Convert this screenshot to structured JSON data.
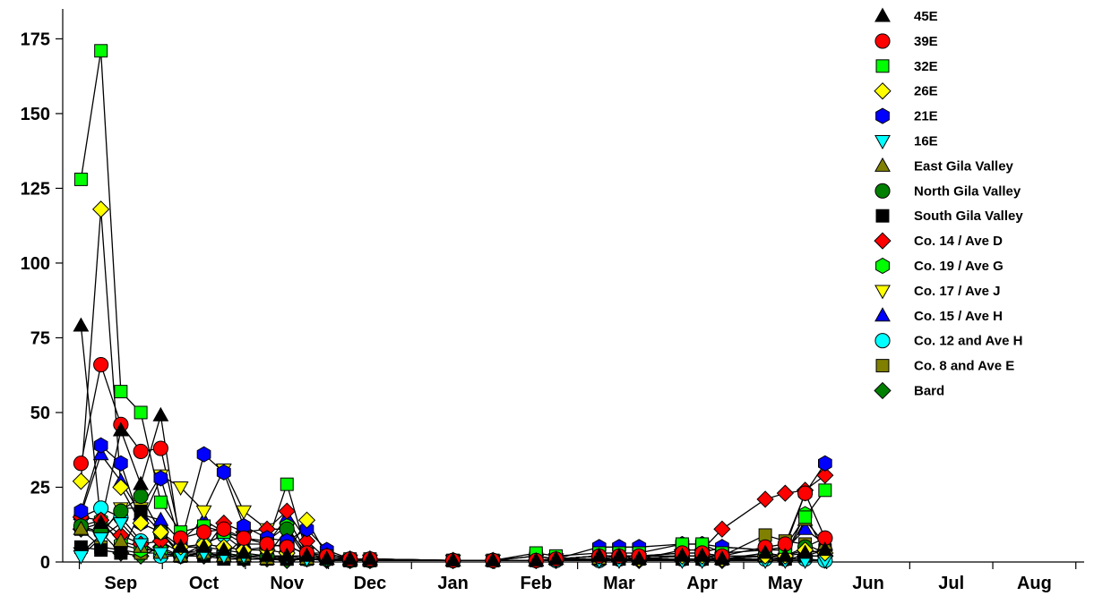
{
  "chart_data": {
    "type": "line",
    "title": "",
    "xlabel": "",
    "ylabel": "",
    "ylim": [
      0,
      185
    ],
    "xlim": [
      -0.7,
      11.6
    ],
    "yticks": [
      0,
      25,
      50,
      75,
      100,
      125,
      150,
      175
    ],
    "month_ticks": [
      "Sep",
      "Oct",
      "Nov",
      "Dec",
      "Jan",
      "Feb",
      "Mar",
      "Apr",
      "May",
      "Jun",
      "Jul",
      "Aug"
    ],
    "grid": false,
    "legend_position": "top-right",
    "x": [
      -0.48,
      -0.24,
      0.0,
      0.24,
      0.48,
      0.72,
      1.0,
      1.24,
      1.48,
      1.76,
      2.0,
      2.24,
      2.48,
      2.76,
      3.0,
      4.0,
      4.48,
      5.0,
      5.24,
      5.76,
      6.0,
      6.24,
      6.76,
      7.0,
      7.24,
      7.76,
      8.0,
      8.24,
      8.48
    ],
    "series": [
      {
        "name": "45E",
        "marker": "triangle-up",
        "color": "#000000",
        "values": [
          79,
          13,
          44,
          26,
          49,
          5,
          5,
          4,
          3,
          2,
          2,
          2,
          1,
          1,
          1,
          0.5,
          0.5,
          0.5,
          1,
          2,
          2,
          1,
          2,
          2,
          1,
          3,
          2,
          3,
          4
        ]
      },
      {
        "name": "39E",
        "marker": "circle",
        "color": "#ff0000",
        "values": [
          33,
          66,
          46,
          37,
          38,
          8,
          10,
          11,
          8,
          6,
          5,
          3,
          2,
          1,
          1,
          0.5,
          0.5,
          0.5,
          1,
          2,
          2,
          2,
          3,
          3,
          2,
          5,
          6,
          23,
          8
        ]
      },
      {
        "name": "32E",
        "marker": "square",
        "color": "#00ff00",
        "values": [
          128,
          171,
          57,
          50,
          20,
          10,
          12,
          10,
          8,
          6,
          26,
          3,
          2,
          1,
          1,
          0.5,
          0.5,
          3,
          2,
          3,
          3,
          3,
          6,
          6,
          3,
          4,
          5,
          15,
          24
        ]
      },
      {
        "name": "26E",
        "marker": "diamond",
        "color": "#ffff00",
        "values": [
          27,
          118,
          25,
          13,
          10,
          5,
          6,
          5,
          4,
          4,
          3,
          14,
          2,
          1,
          1,
          0.5,
          0.5,
          0.5,
          1,
          2,
          2,
          1,
          2,
          2,
          1,
          2,
          2,
          4,
          3
        ]
      },
      {
        "name": "21E",
        "marker": "hexagon",
        "color": "#0000ff",
        "values": [
          17,
          39,
          33,
          13,
          28,
          6,
          36,
          30,
          12,
          8,
          7,
          11,
          4,
          1,
          1,
          0.5,
          0.5,
          0.5,
          1,
          5,
          5,
          5,
          6,
          6,
          5,
          4,
          5,
          23,
          33
        ]
      },
      {
        "name": "16E",
        "marker": "triangle-down",
        "color": "#00ffff",
        "values": [
          2,
          8,
          13,
          6,
          3,
          2,
          3,
          2,
          2,
          2,
          2,
          1,
          1,
          0.5,
          0.5,
          0.5,
          0.5,
          0.5,
          0.5,
          0.5,
          0.5,
          0.5,
          0.5,
          0.5,
          0.5,
          0.5,
          0.5,
          0.5,
          0.5
        ]
      },
      {
        "name": "East Gila Valley",
        "marker": "triangle-up",
        "color": "#808000",
        "values": [
          11,
          13,
          7,
          5,
          3,
          2,
          3,
          2,
          2,
          1,
          2,
          1,
          1,
          0.5,
          0.5,
          0.5,
          0.5,
          0.5,
          1,
          1,
          2,
          1,
          2,
          2,
          1,
          2,
          2,
          14,
          6
        ]
      },
      {
        "name": "North Gila Valley",
        "marker": "circle",
        "color": "#008000",
        "values": [
          12,
          10,
          17,
          22,
          10,
          3,
          3,
          3,
          2,
          2,
          11,
          1,
          1,
          0.5,
          0.5,
          0.5,
          0.5,
          0.5,
          1,
          1,
          2,
          1,
          2,
          2,
          1,
          2,
          2,
          5,
          8
        ]
      },
      {
        "name": "South Gila Valley",
        "marker": "square",
        "color": "#000000",
        "values": [
          5,
          4,
          3,
          17,
          10,
          2,
          2,
          1,
          1,
          1,
          1,
          1,
          1,
          0.5,
          0.5,
          0.5,
          0.5,
          0.5,
          1,
          1,
          1,
          1,
          1,
          1,
          1,
          2,
          1,
          2,
          4
        ]
      },
      {
        "name": "Co. 14 / Ave D",
        "marker": "diamond",
        "color": "#ff0000",
        "values": [
          15,
          14,
          9,
          6,
          7,
          3,
          4,
          13,
          10,
          11,
          17,
          7,
          1,
          0.5,
          0.5,
          0.5,
          0.5,
          0.5,
          1,
          2,
          2,
          1,
          4,
          4,
          11,
          21,
          23,
          24,
          29
        ]
      },
      {
        "name": "Co. 19 / Ave G",
        "marker": "hexagon",
        "color": "#00ff00",
        "values": [
          12,
          14,
          6,
          4,
          4,
          2,
          3,
          2,
          8,
          7,
          12,
          2,
          1,
          0.5,
          0.5,
          0.5,
          0.5,
          2,
          1,
          2,
          2,
          1,
          2,
          2,
          2,
          2,
          2,
          16,
          3
        ]
      },
      {
        "name": "Co. 17 / Ave J",
        "marker": "triangle-down",
        "color": "#ffff00",
        "values": [
          3,
          9,
          18,
          18,
          29,
          25,
          17,
          31,
          17,
          11,
          11,
          3,
          1,
          0.5,
          0.5,
          0.5,
          0.5,
          0.5,
          1,
          1,
          1,
          1,
          1,
          1,
          1,
          1,
          1,
          2,
          2
        ]
      },
      {
        "name": "Co. 15 / Ave H",
        "marker": "triangle-up",
        "color": "#0000ff",
        "values": [
          16,
          36,
          27,
          16,
          14,
          7,
          14,
          10,
          6,
          6,
          15,
          3,
          3,
          1,
          1,
          0.5,
          0.5,
          0.5,
          1,
          2,
          2,
          2,
          3,
          3,
          5,
          4,
          4,
          11,
          6
        ]
      },
      {
        "name": "Co. 12 and Ave H",
        "marker": "circle",
        "color": "#00ffff",
        "values": [
          15,
          18,
          15,
          7,
          2,
          2,
          6,
          9,
          4,
          5,
          6,
          2,
          1,
          0.5,
          0.5,
          0.5,
          0.5,
          0.5,
          0.5,
          0.5,
          1,
          1,
          1,
          1,
          1,
          1,
          1,
          1,
          0.5
        ]
      },
      {
        "name": "Co. 8 and Ave E",
        "marker": "square",
        "color": "#808000",
        "values": [
          11,
          5,
          4,
          3,
          3,
          2,
          3,
          2,
          2,
          2,
          1,
          1,
          1,
          0.5,
          0.5,
          0.5,
          0.5,
          2,
          1,
          2,
          2,
          2,
          2,
          2,
          2,
          9,
          7,
          6,
          3
        ]
      },
      {
        "name": "Bard",
        "marker": "diamond",
        "color": "#008000",
        "values": [
          11,
          10,
          3,
          2,
          5,
          2,
          2,
          2,
          1,
          1,
          0.5,
          1,
          0.5,
          0.5,
          0.5,
          0.5,
          0.5,
          0.5,
          0.5,
          1,
          1,
          0.5,
          1,
          1,
          0.5,
          1,
          1,
          2,
          2
        ]
      }
    ]
  }
}
